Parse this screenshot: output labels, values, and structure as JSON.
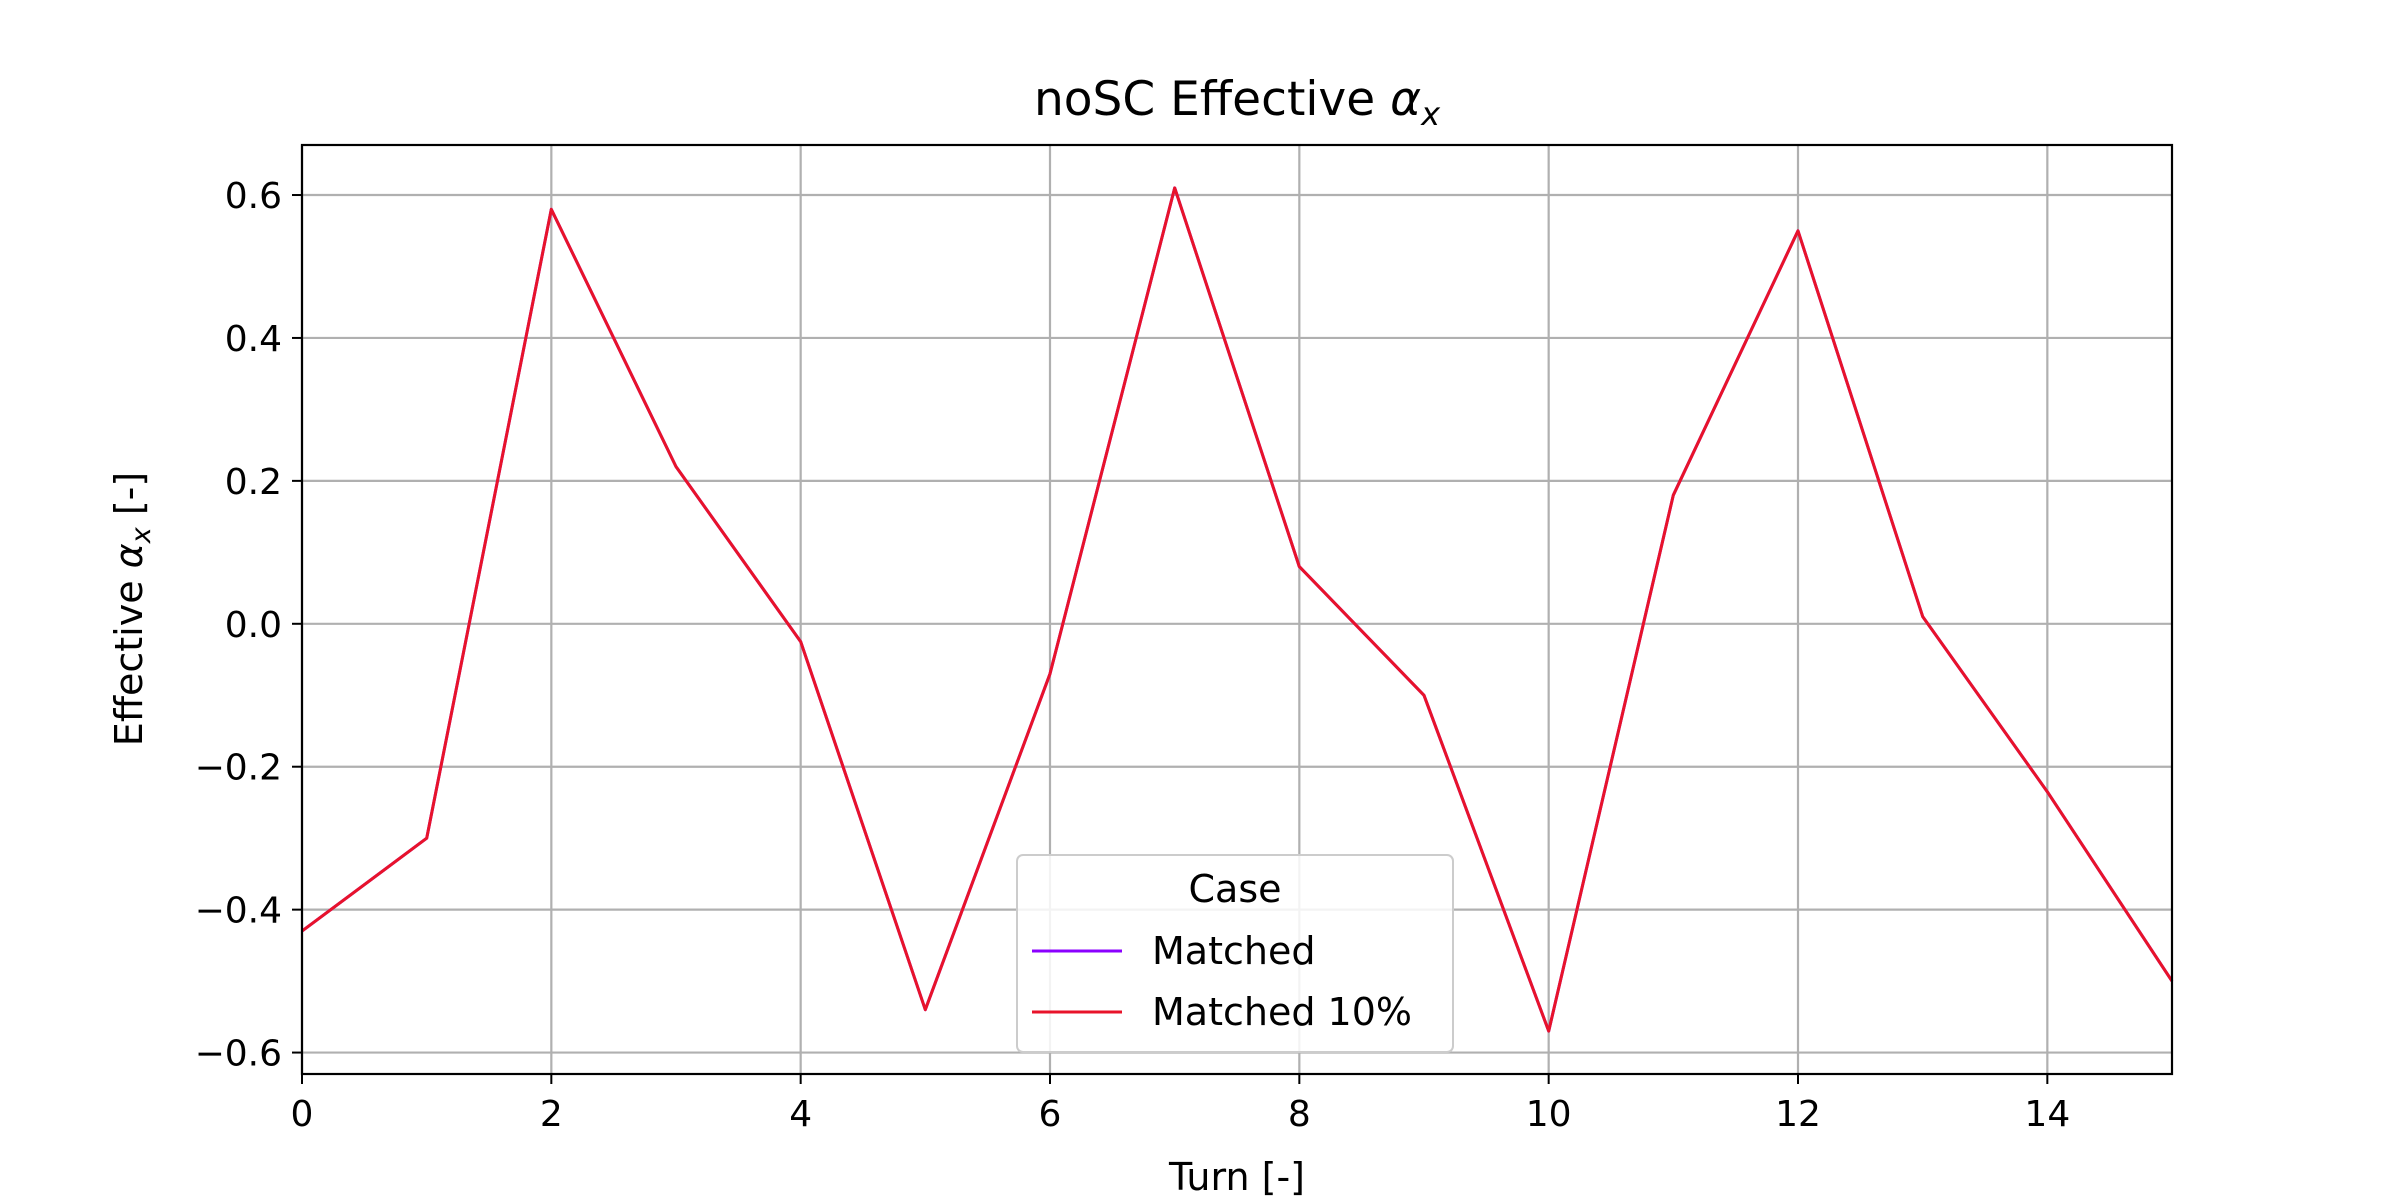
{
  "chart_data": {
    "type": "line",
    "title": "noSC Effective αx",
    "title_main": "noSC Effective ",
    "title_symbol": "α",
    "title_sub": "x",
    "xlabel": "Turn [-]",
    "ylabel": "Effective αx [-]",
    "ylabel_pre": "Effective ",
    "ylabel_symbol": "α",
    "ylabel_sub": "x",
    "ylabel_post": " [-]",
    "xlim": [
      0,
      15
    ],
    "ylim": [
      -0.63,
      0.67
    ],
    "xticks": [
      0,
      2,
      4,
      6,
      8,
      10,
      12,
      14
    ],
    "xtick_labels": [
      "0",
      "2",
      "4",
      "6",
      "8",
      "10",
      "12",
      "14"
    ],
    "yticks": [
      -0.6,
      -0.4,
      -0.2,
      0.0,
      0.2,
      0.4,
      0.6
    ],
    "ytick_labels": [
      "−0.6",
      "−0.4",
      "−0.2",
      "0.0",
      "0.2",
      "0.4",
      "0.6"
    ],
    "grid": true,
    "legend": {
      "title": "Case",
      "placement": "lower center"
    },
    "series": [
      {
        "name": "Matched",
        "color": "#8b00ff",
        "x": [
          0,
          1,
          2,
          3,
          4,
          5,
          6,
          7,
          8,
          9,
          10,
          11,
          12,
          13,
          14,
          15
        ],
        "y": [
          -0.43,
          -0.3,
          0.58,
          0.22,
          -0.025,
          -0.54,
          -0.07,
          0.61,
          0.08,
          -0.1,
          -0.57,
          0.18,
          0.55,
          0.01,
          -0.235,
          -0.5
        ]
      },
      {
        "name": "Matched 10%",
        "color": "#e8132a",
        "x": [
          0,
          1,
          2,
          3,
          4,
          5,
          6,
          7,
          8,
          9,
          10,
          11,
          12,
          13,
          14,
          15
        ],
        "y": [
          -0.43,
          -0.3,
          0.58,
          0.22,
          -0.025,
          -0.54,
          -0.07,
          0.61,
          0.08,
          -0.1,
          -0.57,
          0.18,
          0.55,
          0.01,
          -0.235,
          -0.5
        ]
      }
    ]
  }
}
